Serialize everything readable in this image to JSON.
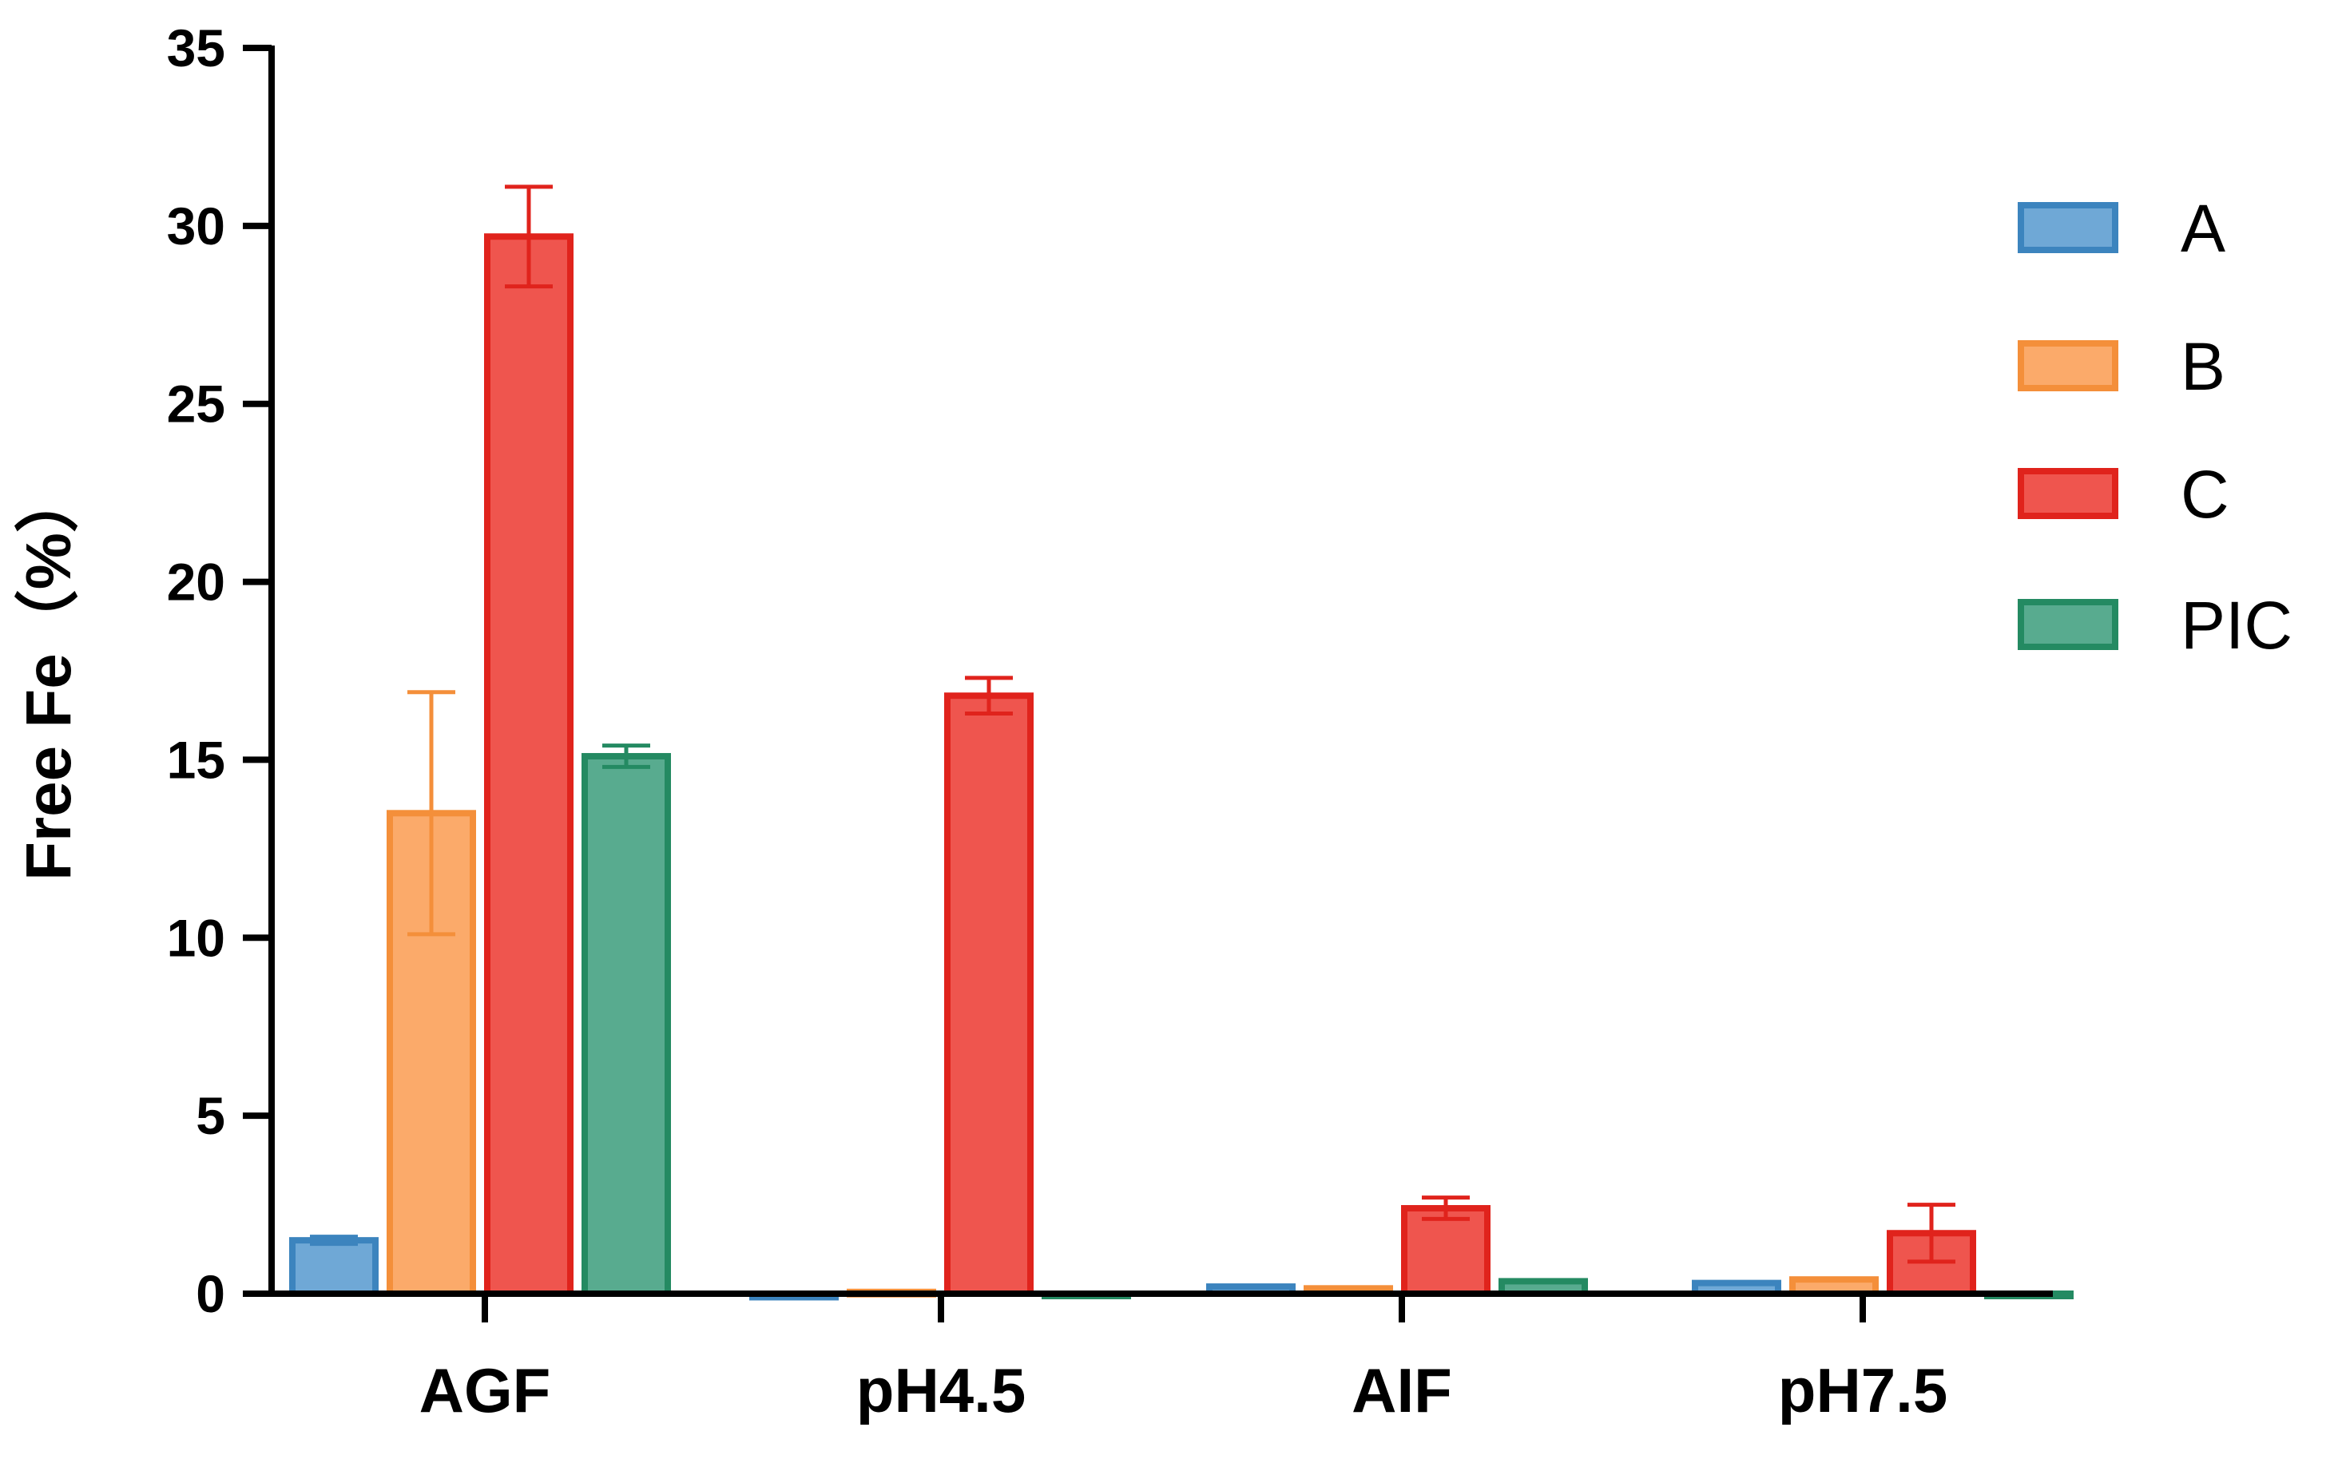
{
  "chart_data": {
    "type": "bar",
    "title": "",
    "xlabel": "",
    "ylabel": "Free Fe（%）",
    "ylim": [
      0,
      35
    ],
    "yticks": [
      0,
      5,
      10,
      15,
      20,
      25,
      30,
      35
    ],
    "categories": [
      "AGF",
      "pH4.5",
      "AIF",
      "pH7.5"
    ],
    "series": [
      {
        "name": "A",
        "fill": "#6fa8d6",
        "stroke": "#3c84be",
        "values": [
          1.5,
          -0.1,
          0.2,
          0.3
        ],
        "errors": [
          0.1,
          0,
          0,
          0
        ]
      },
      {
        "name": "B",
        "fill": "#fbaa6a",
        "stroke": "#f48f3a",
        "values": [
          13.5,
          0.05,
          0.15,
          0.4
        ],
        "errors": [
          3.4,
          0,
          0,
          0
        ]
      },
      {
        "name": "C",
        "fill": "#ef554e",
        "stroke": "#e0231c",
        "values": [
          29.7,
          16.8,
          2.4,
          1.7
        ],
        "errors": [
          1.4,
          0.5,
          0.3,
          0.8
        ]
      },
      {
        "name": "PIC",
        "fill": "#58ab8f",
        "stroke": "#248a62",
        "values": [
          15.1,
          0,
          0.35,
          0
        ],
        "errors": [
          0.3,
          0,
          0,
          0
        ]
      }
    ],
    "grid": false,
    "legend_position": "right"
  }
}
